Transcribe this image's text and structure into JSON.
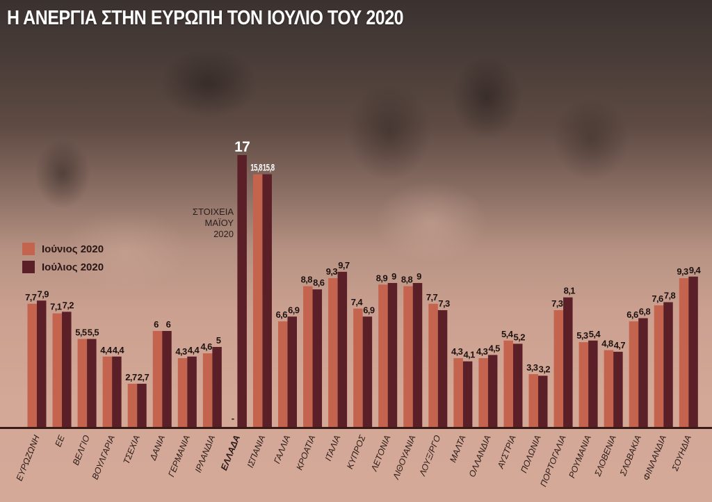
{
  "title": "Η ΑΝΕΡΓΙΑ ΣΤΗΝ ΕΥΡΩΠΗ ΤΟΝ ΙΟΥΛΙΟ ΤΟΥ 2020",
  "note": "ΣΤΟΙΧΕΙΑ ΜΑΪΟΥ 2020",
  "colors": {
    "june": "#c4644e",
    "july": "#5a1f27",
    "axis": "#3a1a16"
  },
  "chart_data": {
    "type": "bar",
    "title": "Η ΑΝΕΡΓΙΑ ΣΤΗΝ ΕΥΡΩΠΗ ΤΟΝ ΙΟΥΛΙΟ ΤΟΥ 2020",
    "xlabel": "",
    "ylabel": "",
    "ylim": [
      0,
      17
    ],
    "grid": false,
    "legend_position": "left",
    "highlight_category": "ΕΛΛΑΔΑ",
    "categories": [
      "ΕΥΡΩΖΩΝΗ",
      "ΕΕ",
      "ΒΕΛΓΙΟ",
      "ΒΟΥΛΓΑΡΙΑ",
      "ΤΣΕΧΙΑ",
      "ΔΑΝΙΑ",
      "ΓΕΡΜΑΝΙΑ",
      "ΙΡΛΑΝΔΙΑ",
      "ΕΛΛΑΔΑ",
      "ΙΣΠΑΝΙΑ",
      "ΓΑΛΛΙΑ",
      "ΚΡΟΑΤΙΑ",
      "ΙΤΑΛΙΑ",
      "ΚΥΠΡΟΣ",
      "ΛΕΤΟΝΙΑ",
      "ΛΙΘΟΥΑΝΙΑ",
      "ΛΟΥΞ/ΡΓΟ",
      "ΜΑΛΤΑ",
      "ΟΛΛΑΝΔΙΑ",
      "ΑΥΣΤΡΙΑ",
      "ΠΟΛΩΝΙΑ",
      "ΠΟΡΤΟΓΑΛΙΑ",
      "ΡΟΥΜΑΝΙΑ",
      "ΣΛΟΒΕΝΙΑ",
      "ΣΛΟΒΑΚΙΑ",
      "ΦΙΝΛΑΝΔΙΑ",
      "ΣΟΥΗΔΙΑ"
    ],
    "series": [
      {
        "name": "Ιούνιος 2020",
        "values": [
          7.7,
          7.1,
          5.5,
          4.4,
          2.7,
          6,
          4.3,
          4.6,
          null,
          15.8,
          6.6,
          8.8,
          9.3,
          7.4,
          8.9,
          8.8,
          7.7,
          4.3,
          4.3,
          5.4,
          3.3,
          7.3,
          5.3,
          4.8,
          6.6,
          7.6,
          9.3
        ],
        "labels": [
          "7,7",
          "7,1",
          "5,5",
          "4,4",
          "2,7",
          "6",
          "4,3",
          "4,6",
          "-",
          "15,8",
          "6,6",
          "8,8",
          "9,3",
          "7,4",
          "8,9",
          "8,8",
          "7,7",
          "4,3",
          "4,3",
          "5,4",
          "3,3",
          "7,3",
          "5,3",
          "4,8",
          "6,6",
          "7,6",
          "9,3"
        ]
      },
      {
        "name": "Ιούλιος 2020",
        "values": [
          7.9,
          7.2,
          5.5,
          4.4,
          2.7,
          6,
          4.4,
          5,
          17,
          15.8,
          6.9,
          8.6,
          9.7,
          6.9,
          9,
          9,
          7.3,
          4.1,
          4.5,
          5.2,
          3.2,
          8.1,
          5.4,
          4.7,
          6.8,
          7.8,
          9.4
        ],
        "labels": [
          "7,9",
          "7,2",
          "5,5",
          "4,4",
          "2,7",
          "6",
          "4,4",
          "5",
          "17",
          "15,8",
          "6,9",
          "8,6",
          "9,7",
          "6,9",
          "9",
          "9",
          "7,3",
          "4,1",
          "4,5",
          "5,2",
          "3,2",
          "8,1",
          "5,4",
          "4,7",
          "6,8",
          "7,8",
          "9,4"
        ]
      }
    ]
  }
}
